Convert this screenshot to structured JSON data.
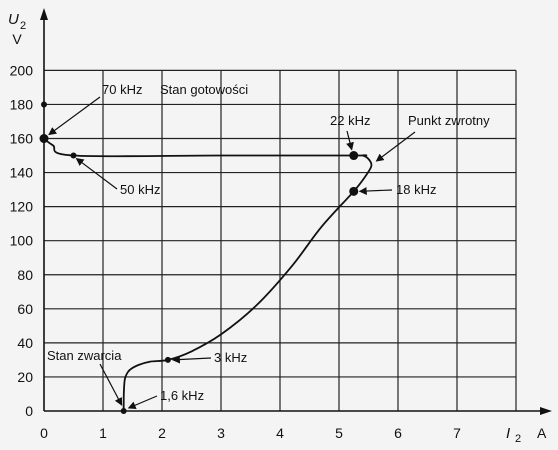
{
  "chart_data": {
    "type": "line",
    "title": "",
    "y_axis": {
      "symbol": "U",
      "subscript": "2",
      "unit": "V",
      "ticks": [
        0,
        20,
        40,
        60,
        80,
        100,
        120,
        140,
        160,
        180,
        200
      ],
      "range": [
        0,
        200
      ]
    },
    "x_axis": {
      "symbol": "I",
      "subscript": "2",
      "unit": "A",
      "ticks": [
        0,
        1,
        2,
        3,
        4,
        5,
        6,
        7
      ],
      "range": [
        0,
        8
      ]
    },
    "grid": true,
    "series": [
      {
        "x": [
          1.35,
          1.35,
          1.36,
          1.38,
          1.45,
          1.6,
          1.8,
          2.1,
          2.5,
          3.0,
          3.6,
          4.2,
          4.7,
          5.25,
          5.45,
          5.55,
          5.5,
          5.4,
          5.25,
          3.0,
          0.5,
          0.15,
          0.0
        ],
        "y": [
          0,
          5,
          15,
          20,
          24,
          27,
          29,
          30,
          35,
          45,
          62,
          85,
          108,
          129,
          138,
          144,
          148,
          150,
          150,
          150,
          150,
          156,
          160
        ]
      }
    ],
    "points": [
      {
        "x": 0.0,
        "y": 160,
        "label": "70 kHz",
        "marker": "large"
      },
      {
        "x": 0.0,
        "y": 180,
        "label": "",
        "marker": "small"
      },
      {
        "x": 0.5,
        "y": 150,
        "label": "50 kHz",
        "marker": "small"
      },
      {
        "x": 5.25,
        "y": 150,
        "label": "22 kHz",
        "marker": "large"
      },
      {
        "x": 5.25,
        "y": 129,
        "label": "18 kHz",
        "marker": "large"
      },
      {
        "x": 2.1,
        "y": 30,
        "label": "3 kHz",
        "marker": "small"
      },
      {
        "x": 1.35,
        "y": 0,
        "label": "1,6 kHz",
        "marker": "small"
      }
    ],
    "annotations": {
      "stan_gotowosci": "Stan gotowości",
      "punkt_zwrotny": "Punkt zwrotny",
      "stan_zwarcia": "Stan zwarcia"
    }
  }
}
